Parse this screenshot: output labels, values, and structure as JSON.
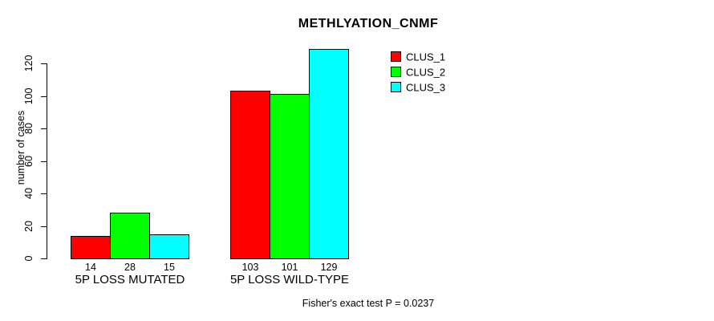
{
  "title": "METHLYATION_CNMF",
  "footer": "Fisher's exact test P = 0.0237",
  "y_axis": {
    "label": "number of cases",
    "ticks": [
      0,
      20,
      40,
      60,
      80,
      100,
      120
    ]
  },
  "legend": {
    "position": "top-right",
    "items": [
      {
        "label": "CLUS_1",
        "color": "#FF0000"
      },
      {
        "label": "CLUS_2",
        "color": "#00FF00"
      },
      {
        "label": "CLUS_3",
        "color": "#00FFFF"
      }
    ]
  },
  "chart_data": {
    "type": "bar",
    "title": "METHLYATION_CNMF",
    "categories": [
      "5P LOSS MUTATED",
      "5P LOSS WILD-TYPE"
    ],
    "series": [
      {
        "name": "CLUS_1",
        "color": "#FF0000",
        "values": [
          14,
          103
        ]
      },
      {
        "name": "CLUS_2",
        "color": "#00FF00",
        "values": [
          28,
          101
        ]
      },
      {
        "name": "CLUS_3",
        "color": "#00FFFF",
        "values": [
          15,
          129
        ]
      }
    ],
    "xlabel": "",
    "ylabel": "number of cases",
    "ylim": [
      0,
      135
    ],
    "yticks": [
      0,
      20,
      40,
      60,
      80,
      100,
      120
    ],
    "grid": false,
    "bar_value_labels": [
      [
        14,
        28,
        15
      ],
      [
        103,
        101,
        129
      ]
    ],
    "bar_border_color": "#000000",
    "legend_position": "top-right",
    "annotation": "Fisher's exact test P = 0.0237"
  }
}
